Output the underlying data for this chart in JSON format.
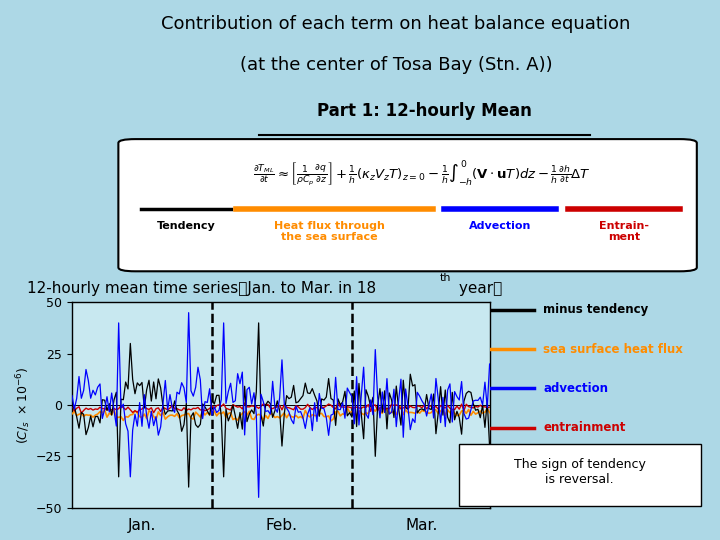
{
  "title_line1": "Contribution of each term on heat balance equation",
  "title_line2": "(at the center of Tosa Bay (Stn. A))",
  "part_label": "Part 1: 12-hourly Mean",
  "bg_color": "#add8e6",
  "plot_bg_color": "#c8e8f0",
  "ylim": [
    -50,
    50
  ],
  "yticks": [
    -50,
    -25,
    0,
    25,
    50
  ],
  "legend_entries": [
    "minus tendency",
    "sea surface heat flux",
    "advection",
    "entrainment"
  ],
  "legend_colors": [
    "#000000",
    "#ff8c00",
    "#0000ff",
    "#cc0000"
  ],
  "tendency_color": "#000000",
  "heat_flux_color": "#ff8c00",
  "advection_color": "#0000ff",
  "entrainment_color": "#cc0000",
  "box_note": "The sign of tendency\nis reversal.",
  "month_labels": [
    "Jan.",
    "Feb.",
    "Mar."
  ],
  "n_points": 180,
  "seed": 42
}
